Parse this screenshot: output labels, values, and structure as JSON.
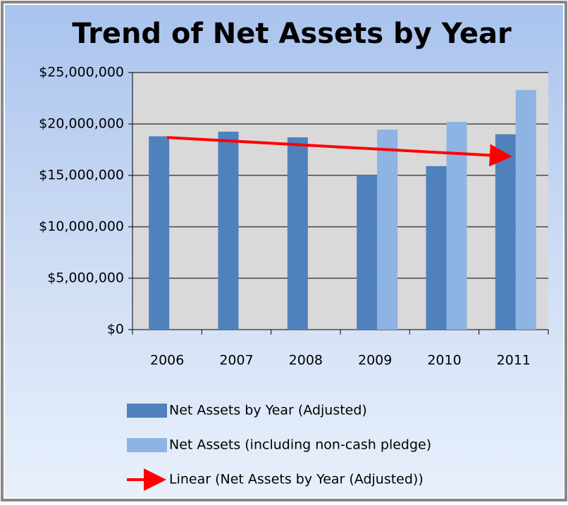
{
  "chart_data": {
    "type": "bar",
    "title": "Trend of Net Assets by Year",
    "categories": [
      "2006",
      "2007",
      "2008",
      "2009",
      "2010",
      "2011"
    ],
    "series": [
      {
        "name": "Net Assets by Year (Adjusted)",
        "color": "#4f81bd",
        "values": [
          18800000,
          19250000,
          18700000,
          15000000,
          15900000,
          19000000
        ]
      },
      {
        "name": "Net Assets (including non-cash pledge)",
        "color": "#8eb4e3",
        "values": [
          null,
          null,
          null,
          19450000,
          20200000,
          23300000
        ]
      }
    ],
    "trendline": {
      "name": "Linear (Net Assets by Year (Adjusted))",
      "color": "#ff0000",
      "series": 0
    },
    "ylim": [
      0,
      25000000
    ],
    "yticks": [
      {
        "value": 0,
        "label": "$0"
      },
      {
        "value": 5000000,
        "label": "$5,000,000"
      },
      {
        "value": 10000000,
        "label": "$10,000,000"
      },
      {
        "value": 15000000,
        "label": "$15,000,000"
      },
      {
        "value": 20000000,
        "label": "$20,000,000"
      },
      {
        "value": 25000000,
        "label": "$25,000,000"
      }
    ],
    "grid": true,
    "legend": "bottom"
  }
}
